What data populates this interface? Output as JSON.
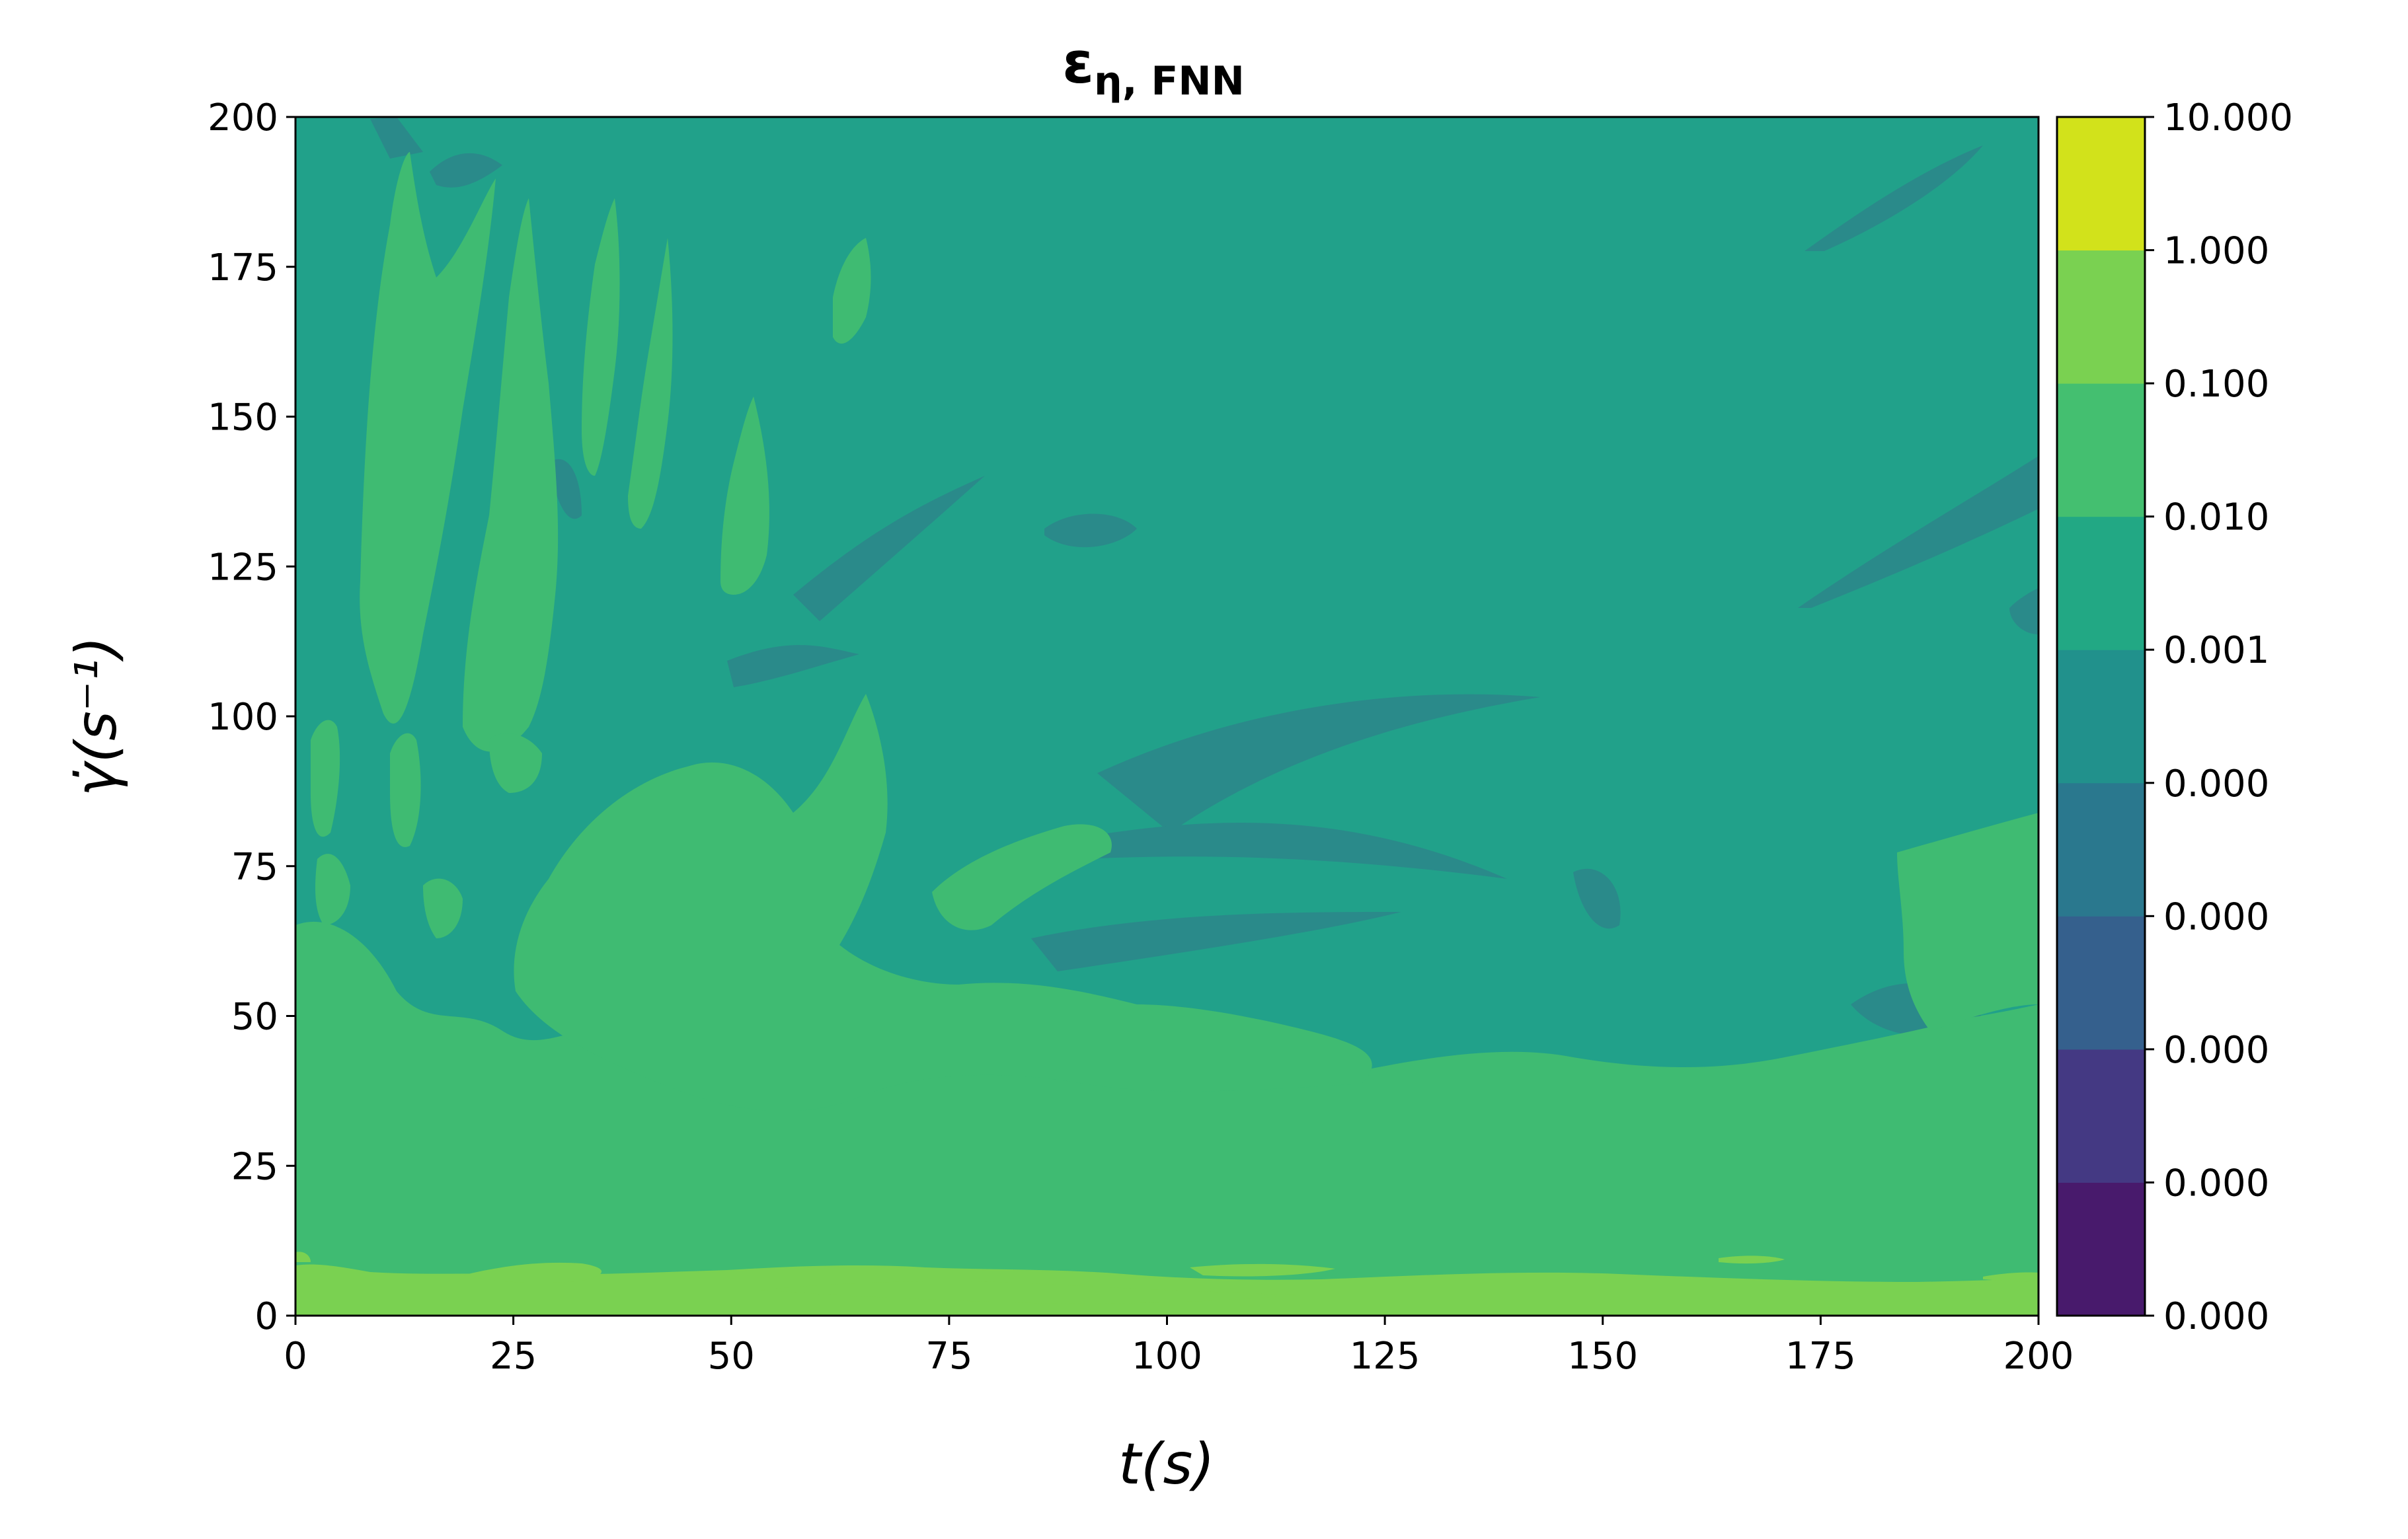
{
  "chart_data": {
    "type": "heatmap",
    "title": {
      "main": "ε",
      "subscript": "η, FNN"
    },
    "xlabel": "t(s)",
    "ylabel": "γ̇(s⁻¹)",
    "xlim": [
      0,
      200
    ],
    "ylim": [
      0,
      200
    ],
    "x_ticks": [
      "0",
      "25",
      "50",
      "75",
      "100",
      "125",
      "150",
      "175",
      "200"
    ],
    "y_ticks": [
      "0",
      "25",
      "50",
      "75",
      "100",
      "125",
      "150",
      "175",
      "200"
    ],
    "colorbar": {
      "scale": "log",
      "tick_labels": [
        "0.000",
        "0.000",
        "0.000",
        "0.000",
        "0.000",
        "0.001",
        "0.010",
        "0.100",
        "1.000",
        "10.000"
      ],
      "level_colors": [
        "#481a6c",
        "#443983",
        "#35608d",
        "#2a788e",
        "#21918c",
        "#22a884",
        "#44bf70",
        "#7ad151",
        "#d2e21b"
      ]
    },
    "regions": {
      "background_level": "0.001–0.010",
      "background_color": "#21a18a",
      "dominant_levels": [
        "0.0001–0.001",
        "0.001–0.010",
        "0.010–0.100",
        "0.100–1.000"
      ],
      "notes": "Error highest (0.1–1) in a thin band along γ̇ ≈ 0–8 s⁻¹; 0.01–0.1 patches concentrated at low γ̇ and small t; most of the domain in 0.001–0.01"
    }
  }
}
